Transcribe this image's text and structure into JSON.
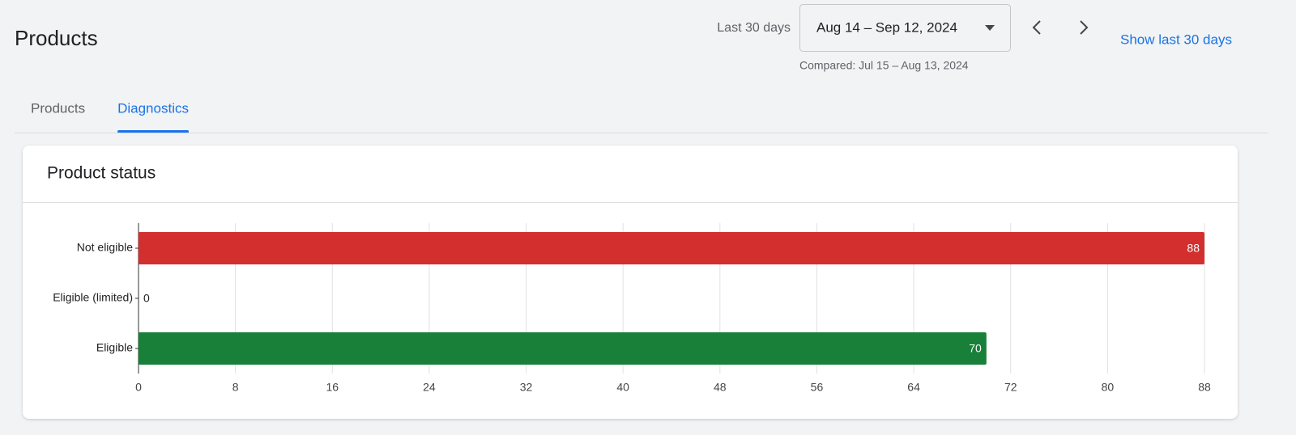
{
  "header": {
    "title": "Products",
    "range_label": "Last 30 days",
    "date_range": "Aug 14 – Sep 12, 2024",
    "compared": "Compared: Jul 15 – Aug 13, 2024",
    "show_last": "Show last 30 days"
  },
  "tabs": [
    {
      "label": "Products",
      "active": false
    },
    {
      "label": "Diagnostics",
      "active": true
    }
  ],
  "card_title": "Product status",
  "chart_data": {
    "type": "bar",
    "orientation": "horizontal",
    "categories": [
      "Not eligible",
      "Eligible (limited)",
      "Eligible"
    ],
    "values": [
      88,
      0,
      70
    ],
    "colors": [
      "#d32f2f",
      "#f9ab00",
      "#188038"
    ],
    "xlim": [
      0,
      88
    ],
    "xticks": [
      0,
      8,
      16,
      24,
      32,
      40,
      48,
      56,
      64,
      72,
      80,
      88
    ],
    "grid": true
  }
}
